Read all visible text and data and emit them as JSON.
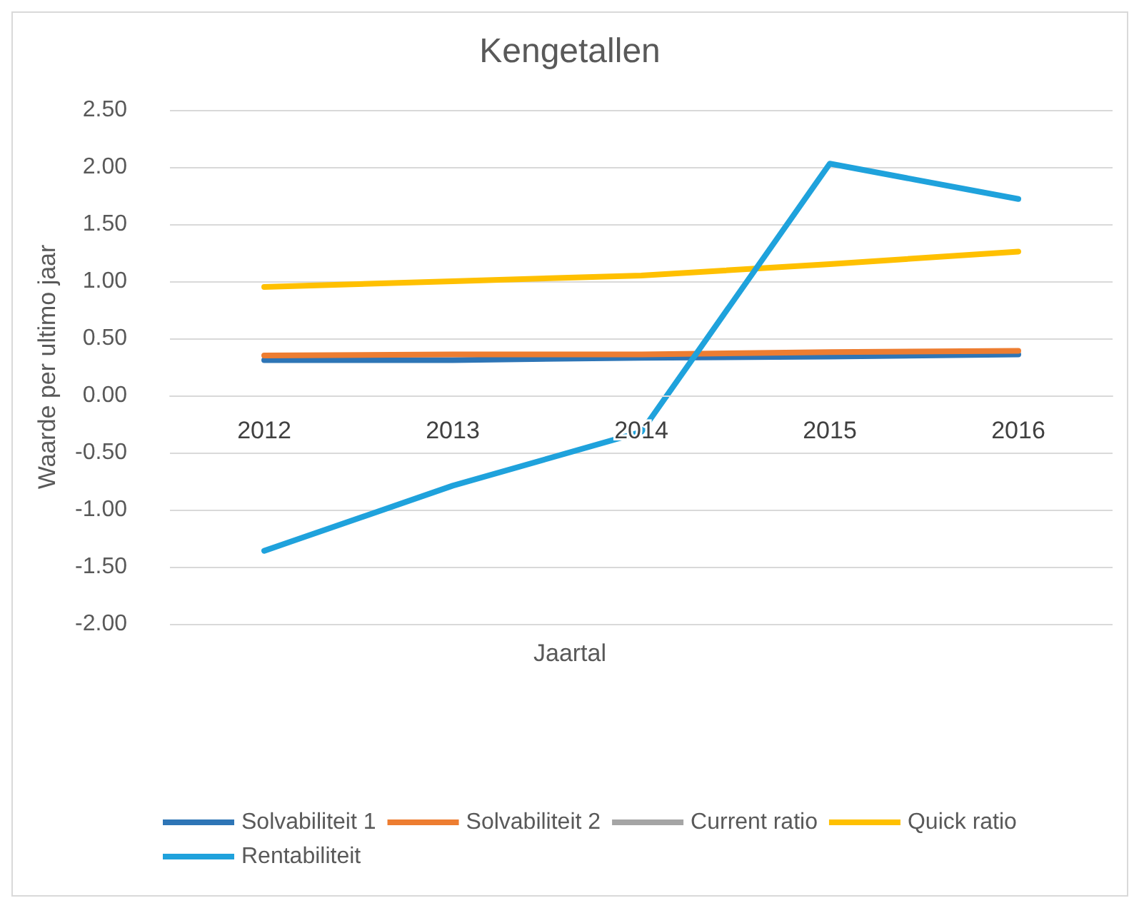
{
  "chart_data": {
    "type": "line",
    "title": "Kengetallen",
    "xlabel": "Jaartal",
    "ylabel": "Waarde per ultimo jaar",
    "categories": [
      "2012",
      "2013",
      "2014",
      "2015",
      "2016"
    ],
    "series": [
      {
        "name": "Solvabiliteit 1",
        "color": "#2e75b6",
        "values": [
          0.31,
          0.31,
          0.33,
          0.34,
          0.36
        ]
      },
      {
        "name": "Solvabiliteit 2",
        "color": "#ed7d31",
        "values": [
          0.35,
          0.36,
          0.36,
          0.38,
          0.39
        ]
      },
      {
        "name": "Current ratio",
        "color": "#a5a5a5",
        "values": [
          null,
          null,
          null,
          null,
          null
        ]
      },
      {
        "name": "Quick ratio",
        "color": "#ffc000",
        "values": [
          0.95,
          1.0,
          1.05,
          1.15,
          1.26
        ]
      },
      {
        "name": "Rentabiliteit",
        "color": "#1fa2dc",
        "values": [
          -1.36,
          -0.79,
          -0.32,
          2.03,
          1.72
        ]
      }
    ],
    "ylim": [
      -2,
      2.5
    ],
    "yticks": [
      {
        "value": -2,
        "label": "-2.00"
      },
      {
        "value": -1.5,
        "label": "-1.50"
      },
      {
        "value": -1,
        "label": "-1.00"
      },
      {
        "value": -0.5,
        "label": "-0.50"
      },
      {
        "value": 0,
        "label": "0.00"
      },
      {
        "value": 0.5,
        "label": "0.50"
      },
      {
        "value": 1,
        "label": "1.00"
      },
      {
        "value": 1.5,
        "label": "1.50"
      },
      {
        "value": 2,
        "label": "2.00"
      },
      {
        "value": 2.5,
        "label": "2.50"
      }
    ],
    "grid": "y",
    "legend": "bottom",
    "marker": "none",
    "line_style": "solid"
  }
}
